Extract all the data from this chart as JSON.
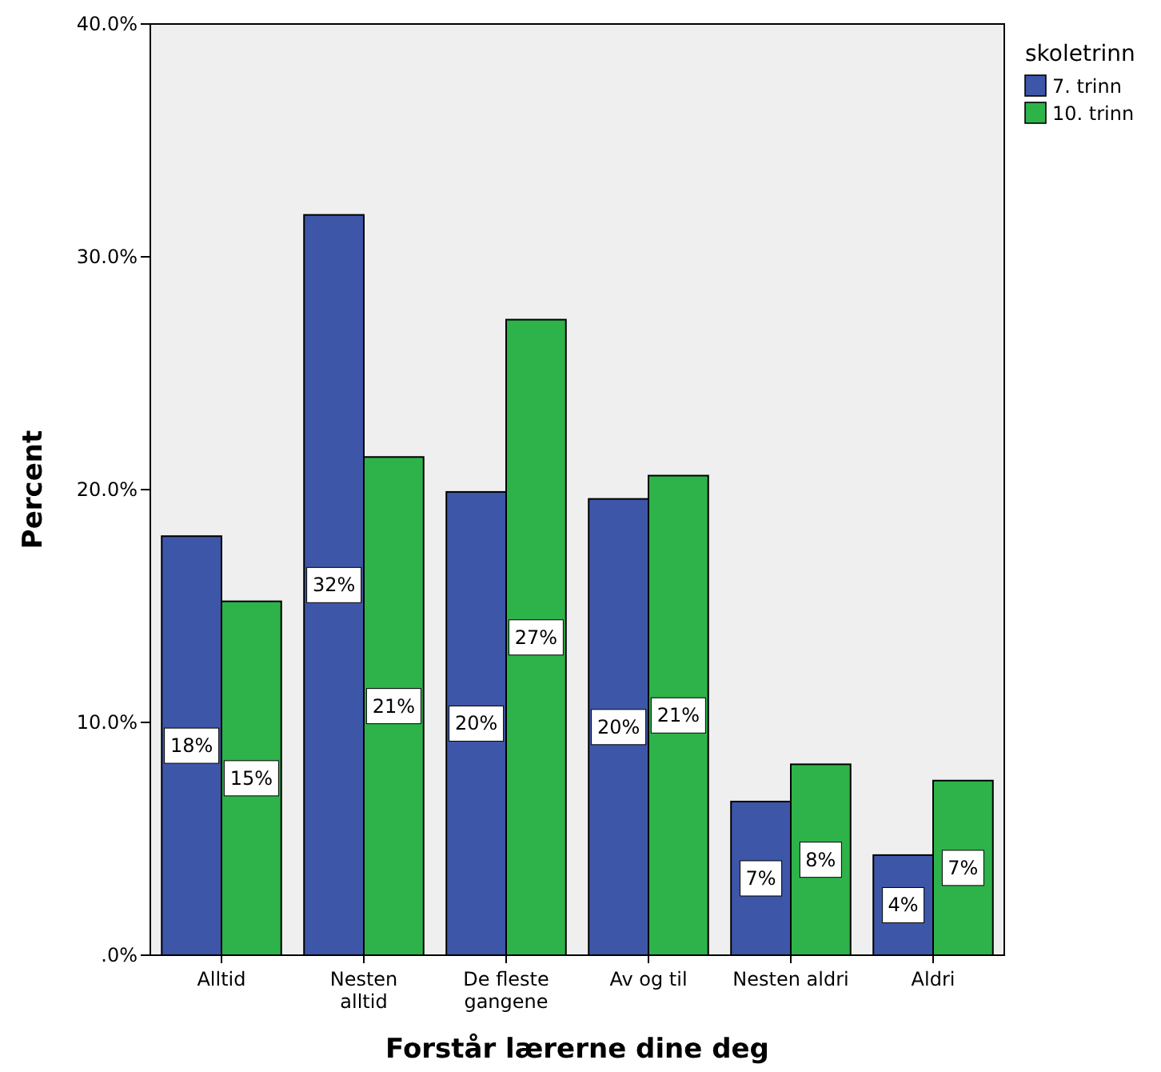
{
  "chart_data": {
    "type": "bar",
    "xlabel": "Forstår lærerne dine deg",
    "ylabel": "Percent",
    "legend_title": "skoletrinn",
    "legend": "top right",
    "grid": false,
    "categories": [
      "Alltid",
      "Nesten\nalltid",
      "De fleste\ngangene",
      "Av og til",
      "Nesten aldri",
      "Aldri"
    ],
    "ylim": [
      0,
      40
    ],
    "yticks": [
      {
        "value": 0,
        "label": ".0%"
      },
      {
        "value": 10,
        "label": "10.0%"
      },
      {
        "value": 20,
        "label": "20.0%"
      },
      {
        "value": 30,
        "label": "30.0%"
      },
      {
        "value": 40,
        "label": "40.0%"
      }
    ],
    "series": [
      {
        "name": "7. trinn",
        "color": "#3d56a8",
        "values": [
          18.0,
          31.8,
          19.9,
          19.6,
          6.6,
          4.3
        ],
        "value_labels": [
          "18%",
          "32%",
          "20%",
          "20%",
          "7%",
          "4%"
        ]
      },
      {
        "name": "10. trinn",
        "color": "#2db34a",
        "values": [
          15.2,
          21.4,
          27.3,
          20.6,
          8.2,
          7.5
        ],
        "value_labels": [
          "15%",
          "21%",
          "27%",
          "21%",
          "8%",
          "7%"
        ]
      }
    ]
  }
}
